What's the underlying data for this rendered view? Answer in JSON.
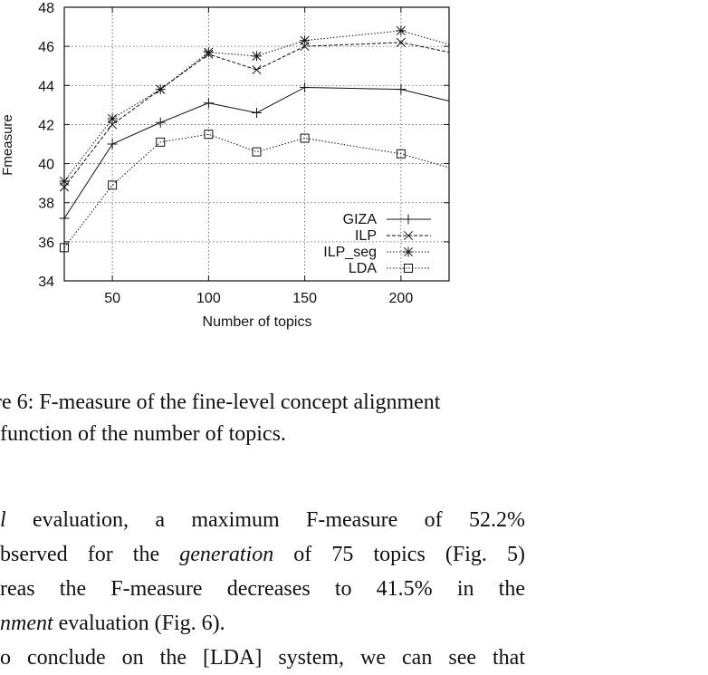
{
  "chart_data": {
    "type": "line",
    "xlabel": "Number of topics",
    "ylabel": "Fmeasure",
    "xlim": [
      25,
      225
    ],
    "ylim": [
      34,
      48
    ],
    "x_ticks": [
      50,
      100,
      150,
      200
    ],
    "y_ticks": [
      34,
      36,
      38,
      40,
      42,
      44,
      46,
      48
    ],
    "grid": true,
    "legend_position": "bottom-right",
    "x": [
      25,
      50,
      75,
      100,
      125,
      150,
      200,
      225
    ],
    "series": [
      {
        "name": "GIZA",
        "marker": "plus",
        "line": "solid",
        "values": [
          37.2,
          41.0,
          42.1,
          43.1,
          42.6,
          43.9,
          43.8,
          43.2
        ]
      },
      {
        "name": "ILP",
        "marker": "x",
        "line": "dashed",
        "values": [
          38.8,
          42.0,
          43.8,
          45.6,
          44.8,
          46.0,
          46.2,
          45.7
        ]
      },
      {
        "name": "ILP_seg",
        "marker": "star",
        "line": "dotted",
        "values": [
          39.1,
          42.3,
          43.8,
          45.7,
          45.5,
          46.3,
          46.8,
          46.1
        ]
      },
      {
        "name": "LDA",
        "marker": "square",
        "line": "dotted",
        "values": [
          35.7,
          38.9,
          41.1,
          41.5,
          40.6,
          41.3,
          40.5,
          39.8
        ]
      }
    ]
  },
  "caption": {
    "line1": "re 6: F-measure of the fine-level concept alignment",
    "line2": "function of the number of topics."
  },
  "body": {
    "l1_a": "l",
    "l1_b": " evaluation, a maximum F-measure of 52.2%",
    "l2_a": "bserved for the ",
    "l2_em": "generation",
    "l2_b": " of 75 topics (Fig. 5)",
    "l3": "reas the F-measure decreases to 41.5% in the",
    "l4_em": "nment",
    "l4_b": " evaluation (Fig. 6).",
    "l5": "o conclude on the [LDA] system, we can see that"
  }
}
